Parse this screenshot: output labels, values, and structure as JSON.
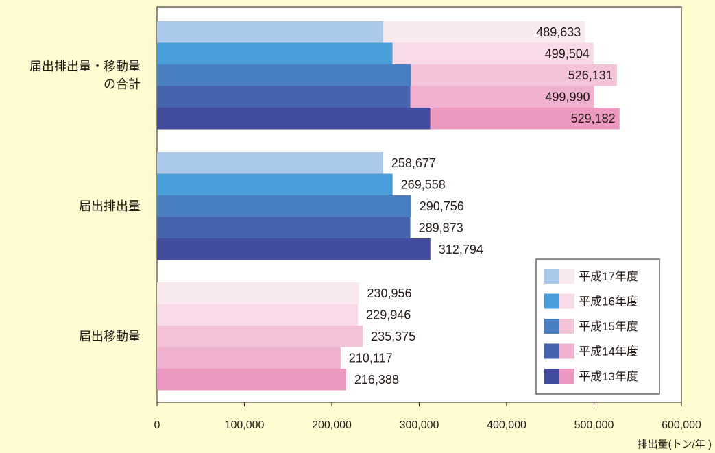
{
  "chart_data": {
    "type": "bar",
    "orientation": "horizontal",
    "stacked": true,
    "xlabel": "排出量(トン/年 )",
    "xlim": [
      0,
      600000
    ],
    "xticks": [
      0,
      100000,
      200000,
      300000,
      400000,
      500000,
      600000
    ],
    "xtick_labels": [
      "0",
      "100,000",
      "200,000",
      "300,000",
      "400,000",
      "500,000",
      "600,000"
    ],
    "grid": false,
    "legend_position": "bottom-right",
    "groups": [
      {
        "label": "届出排出量・移動量の合計",
        "label_lines": [
          "届出排出量・移動量",
          "の合計"
        ],
        "bars": [
          {
            "year": "平成17年度",
            "emission": 258677,
            "transfer": 230956,
            "total_label": "489,633"
          },
          {
            "year": "平成16年度",
            "emission": 269558,
            "transfer": 229946,
            "total_label": "499,504"
          },
          {
            "year": "平成15年度",
            "emission": 290756,
            "transfer": 235375,
            "total_label": "526,131"
          },
          {
            "year": "平成14年度",
            "emission": 289873,
            "transfer": 210117,
            "total_label": "499,990"
          },
          {
            "year": "平成13年度",
            "emission": 312794,
            "transfer": 216388,
            "total_label": "529,182"
          }
        ]
      },
      {
        "label": "届出排出量",
        "label_lines": [
          "届出排出量"
        ],
        "bars": [
          {
            "year": "平成17年度",
            "emission": 258677,
            "transfer": 0,
            "total_label": "258,677"
          },
          {
            "year": "平成16年度",
            "emission": 269558,
            "transfer": 0,
            "total_label": "269,558"
          },
          {
            "year": "平成15年度",
            "emission": 290756,
            "transfer": 0,
            "total_label": "290,756"
          },
          {
            "year": "平成14年度",
            "emission": 289873,
            "transfer": 0,
            "total_label": "289,873"
          },
          {
            "year": "平成13年度",
            "emission": 312794,
            "transfer": 0,
            "total_label": "312,794"
          }
        ]
      },
      {
        "label": "届出移動量",
        "label_lines": [
          "届出移動量"
        ],
        "bars": [
          {
            "year": "平成17年度",
            "emission": 0,
            "transfer": 230956,
            "total_label": "230,956"
          },
          {
            "year": "平成16年度",
            "emission": 0,
            "transfer": 229946,
            "total_label": "229,946"
          },
          {
            "year": "平成15年度",
            "emission": 0,
            "transfer": 235375,
            "total_label": "235,375"
          },
          {
            "year": "平成14年度",
            "emission": 0,
            "transfer": 210117,
            "total_label": "210,117"
          },
          {
            "year": "平成13年度",
            "emission": 0,
            "transfer": 216388,
            "total_label": "216,388"
          }
        ]
      }
    ],
    "series_colors": [
      {
        "year": "平成17年度",
        "emission_color": "#abc9e9",
        "transfer_color": "#fbe9f1"
      },
      {
        "year": "平成16年度",
        "emission_color": "#4a9fda",
        "transfer_color": "#f8d9e8"
      },
      {
        "year": "平成15年度",
        "emission_color": "#4a7fc1",
        "transfer_color": "#f4c2d9"
      },
      {
        "year": "平成14年度",
        "emission_color": "#4664ae",
        "transfer_color": "#f0b0cf"
      },
      {
        "year": "平成13年度",
        "emission_color": "#434c9e",
        "transfer_color": "#eb99c0"
      }
    ],
    "background_color": "#fffcd2",
    "plot_background_color": "#ffffff"
  }
}
